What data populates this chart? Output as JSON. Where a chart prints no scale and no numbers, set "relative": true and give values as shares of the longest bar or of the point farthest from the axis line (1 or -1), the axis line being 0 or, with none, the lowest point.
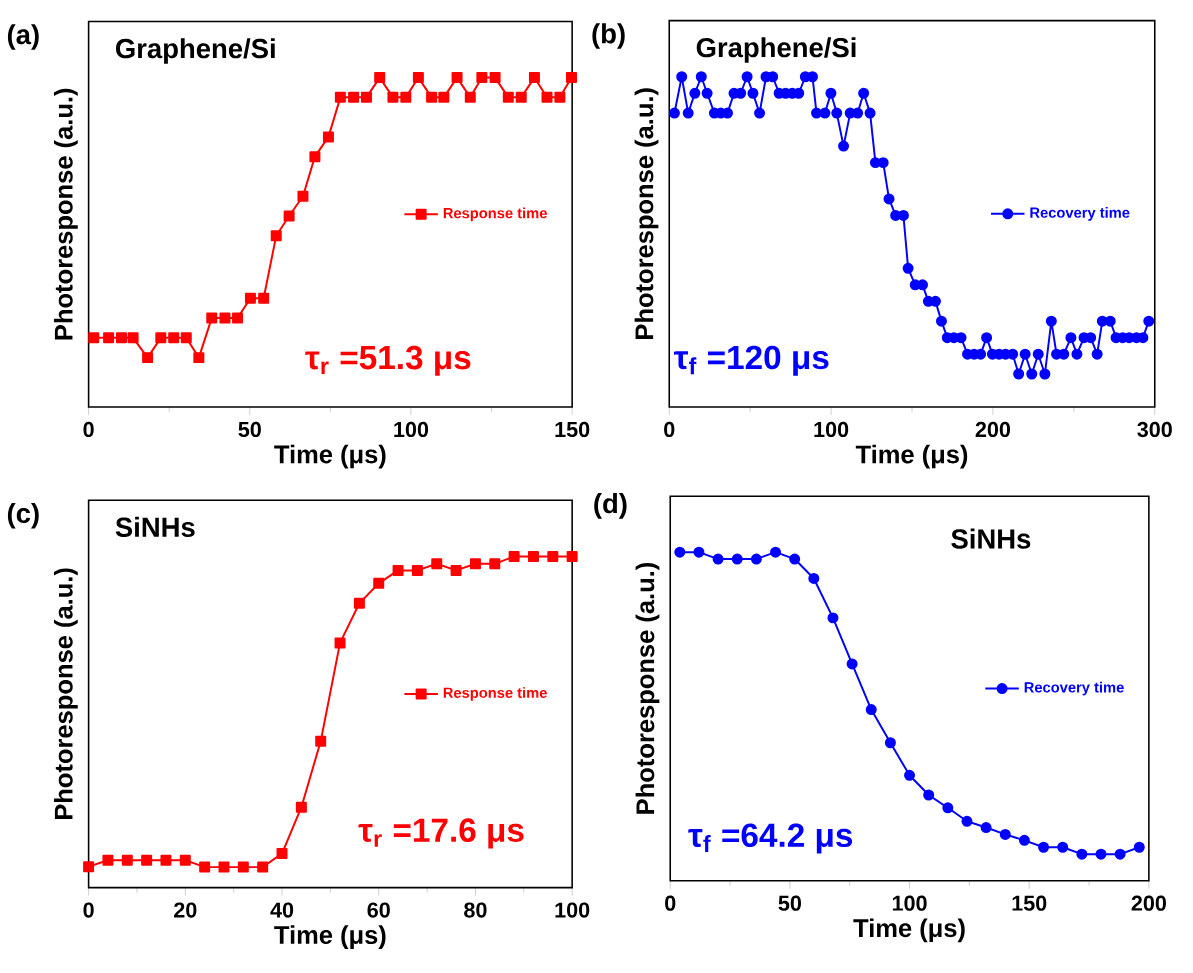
{
  "chart_data": [
    {
      "type": "line",
      "title": "Graphene/Si",
      "xlabel": "Time (μs)",
      "ylabel": "Photoresponse (a.u.)",
      "relative": true,
      "marker": "square",
      "legend": "right",
      "annotations": [
        "(a)",
        "τ$_{r}$ =51.3 μs"
      ],
      "xlim": [
        0,
        150
      ],
      "xticks": [
        0,
        50,
        100,
        150
      ],
      "x": [
        1.6,
        6.2,
        10.2,
        13.8,
        18.3,
        22.4,
        26.4,
        30.3,
        34.2,
        38.2,
        42.3,
        46.2,
        50.2,
        54.3,
        58.2,
        62.2,
        66.5,
        70.2,
        74.4,
        78.1,
        82.2,
        86.2,
        90.3,
        94.4,
        98.4,
        102.3,
        106.4,
        110.2,
        114.3,
        118.4,
        122,
        126.1,
        130.2,
        134.2,
        138.3,
        142.2,
        146.2,
        149.8
      ],
      "series": [
        {
          "name": "Response time",
          "color": "#ff0000",
          "values": [
            0.21,
            0.21,
            0.21,
            0.21,
            0.15,
            0.21,
            0.21,
            0.21,
            0.15,
            0.27,
            0.27,
            0.27,
            0.33,
            0.33,
            0.52,
            0.58,
            0.64,
            0.76,
            0.82,
            0.94,
            0.94,
            0.94,
            1,
            0.94,
            0.94,
            1,
            0.94,
            0.94,
            1,
            0.94,
            1,
            1,
            0.94,
            0.94,
            1,
            0.94,
            0.94,
            1
          ]
        }
      ]
    },
    {
      "type": "line",
      "title": "Graphene/Si",
      "xlabel": "Time (μs)",
      "ylabel": "Photoresponse (a.u.)",
      "relative": true,
      "marker": "circle",
      "legend": "right",
      "annotations": [
        "(b)",
        "τ$_{f}$ =120 μs"
      ],
      "xlim": [
        0,
        300
      ],
      "xticks": [
        0,
        100,
        200,
        300
      ],
      "x": [
        3.2,
        7.7,
        11.7,
        15.8,
        19.8,
        23.4,
        27.9,
        31.9,
        36.0,
        40.0,
        44.1,
        48.1,
        51.7,
        55.8,
        59.8,
        63.9,
        67.9,
        71.9,
        76.0,
        80.0,
        84.1,
        88.5,
        91.0,
        96.2,
        99.9,
        103.5,
        107.7,
        111.8,
        116.4,
        120.1,
        124.1,
        127.4,
        132.2,
        135.8,
        139.9,
        144.7,
        147.6,
        152.0,
        156.5,
        160.1,
        164.5,
        168.2,
        171.8,
        175.9,
        180.3,
        184.3,
        188.4,
        192.4,
        196.1,
        199.7,
        203.8,
        207.8,
        212.2,
        215.9,
        219.9,
        224.0,
        228.0,
        232.1,
        236.1,
        239.3,
        243.8,
        248.2,
        251.9,
        256.3,
        260.4,
        264.4,
        267.6,
        272.5,
        276.1,
        280.2,
        284.2,
        288.7,
        292.7,
        296.3
      ],
      "series": [
        {
          "name": "Recovery time",
          "color": "#0000ff",
          "values": [
            0.89,
            1,
            0.89,
            0.95,
            1,
            0.95,
            0.89,
            0.89,
            0.89,
            0.95,
            0.95,
            1,
            0.95,
            0.89,
            1,
            1,
            0.95,
            0.95,
            0.95,
            0.95,
            1,
            1,
            0.89,
            0.89,
            0.95,
            0.89,
            0.79,
            0.89,
            0.89,
            0.95,
            0.89,
            0.74,
            0.74,
            0.63,
            0.58,
            0.58,
            0.42,
            0.37,
            0.37,
            0.32,
            0.32,
            0.26,
            0.21,
            0.21,
            0.21,
            0.16,
            0.16,
            0.16,
            0.21,
            0.16,
            0.16,
            0.16,
            0.16,
            0.1,
            0.16,
            0.1,
            0.16,
            0.1,
            0.26,
            0.16,
            0.16,
            0.21,
            0.16,
            0.21,
            0.21,
            0.16,
            0.26,
            0.26,
            0.21,
            0.21,
            0.21,
            0.21,
            0.21,
            0.26
          ]
        }
      ]
    },
    {
      "type": "line",
      "title": "SiNHs",
      "xlabel": "Time (μs)",
      "ylabel": "Photoresponse (a.u.)",
      "relative": true,
      "marker": "square",
      "legend": "right",
      "annotations": [
        "(c)",
        "τ$_{r}$ =17.6 μs"
      ],
      "xlim": [
        0,
        100
      ],
      "xticks": [
        0,
        20,
        40,
        60,
        80,
        100
      ],
      "x": [
        0,
        4,
        8,
        12,
        16,
        20,
        24,
        28,
        32,
        36,
        40,
        44,
        48,
        52,
        56,
        60,
        64,
        68,
        72,
        76,
        80,
        84,
        88,
        92,
        96,
        100
      ],
      "series": [
        {
          "name": "Response time",
          "color": "#ff0000",
          "values": [
            0.063,
            0.083,
            0.083,
            0.083,
            0.083,
            0.083,
            0.062,
            0.062,
            0.062,
            0.062,
            0.103,
            0.243,
            0.442,
            0.739,
            0.859,
            0.919,
            0.958,
            0.958,
            0.978,
            0.958,
            0.978,
            0.978,
            1,
            1,
            1,
            1
          ]
        }
      ]
    },
    {
      "type": "line",
      "title": "SiNHs",
      "xlabel": "Time (μs)",
      "ylabel": "Photoresponse (a.u.)",
      "relative": true,
      "marker": "circle",
      "legend": "right",
      "annotations": [
        "(d)",
        "τ$_{f}$ =64.2 μs"
      ],
      "xlim": [
        0,
        200
      ],
      "xticks": [
        0,
        50,
        100,
        150,
        200
      ],
      "x": [
        4,
        12,
        20,
        28,
        36,
        44,
        52,
        60,
        68,
        76,
        84,
        92,
        100,
        108,
        116,
        124,
        132,
        140,
        148,
        156,
        164,
        172,
        180,
        188,
        196
      ],
      "series": [
        {
          "name": "Recovery time",
          "color": "#0000ff",
          "values": [
            1,
            1,
            0.979,
            0.979,
            0.979,
            1,
            0.979,
            0.92,
            0.8,
            0.66,
            0.521,
            0.42,
            0.321,
            0.261,
            0.222,
            0.181,
            0.162,
            0.141,
            0.123,
            0.102,
            0.102,
            0.081,
            0.081,
            0.081,
            0.102
          ]
        }
      ]
    }
  ]
}
